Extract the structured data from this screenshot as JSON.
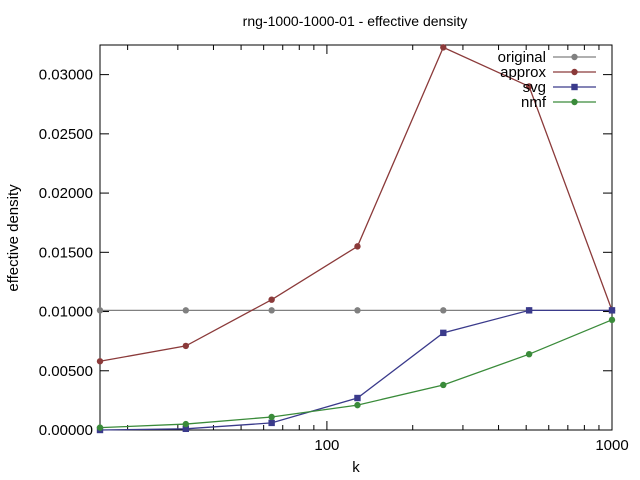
{
  "chart_data": {
    "type": "line",
    "title": "rng-1000-1000-01 - effective density",
    "xlabel": "k",
    "ylabel": "effective density",
    "x_scale": "log",
    "xlim": [
      16,
      1000
    ],
    "ylim": [
      0,
      0.0325
    ],
    "x_ticks": [
      100,
      1000
    ],
    "x_tick_labels": [
      "100",
      "1000"
    ],
    "y_ticks": [
      0,
      0.005,
      0.01,
      0.015,
      0.02,
      0.025,
      0.03
    ],
    "y_tick_labels": [
      "0.00000",
      "0.00500",
      "0.01000",
      "0.01500",
      "0.02000",
      "0.02500",
      "0.03000"
    ],
    "legend_position": "top-right",
    "x": [
      16,
      32,
      64,
      128,
      256,
      512,
      1000
    ],
    "series": [
      {
        "name": "original",
        "color": "#808080",
        "marker": "circle",
        "values": [
          0.0101,
          0.0101,
          0.0101,
          0.0101,
          0.0101,
          0.0101,
          0.0101
        ]
      },
      {
        "name": "approx",
        "color": "#8b3a3a",
        "marker": "circle",
        "values": [
          0.0058,
          0.0071,
          0.011,
          0.0155,
          0.0323,
          0.029,
          0.0101
        ]
      },
      {
        "name": "svg",
        "color": "#3a3a8b",
        "marker": "square",
        "values": [
          0.0,
          0.0001,
          0.0006,
          0.0027,
          0.0082,
          0.0101,
          0.0101
        ]
      },
      {
        "name": "nmf",
        "color": "#3a8b3a",
        "marker": "circle",
        "values": [
          0.0002,
          0.0005,
          0.0011,
          0.0021,
          0.0038,
          0.0064,
          0.0093
        ]
      }
    ]
  }
}
